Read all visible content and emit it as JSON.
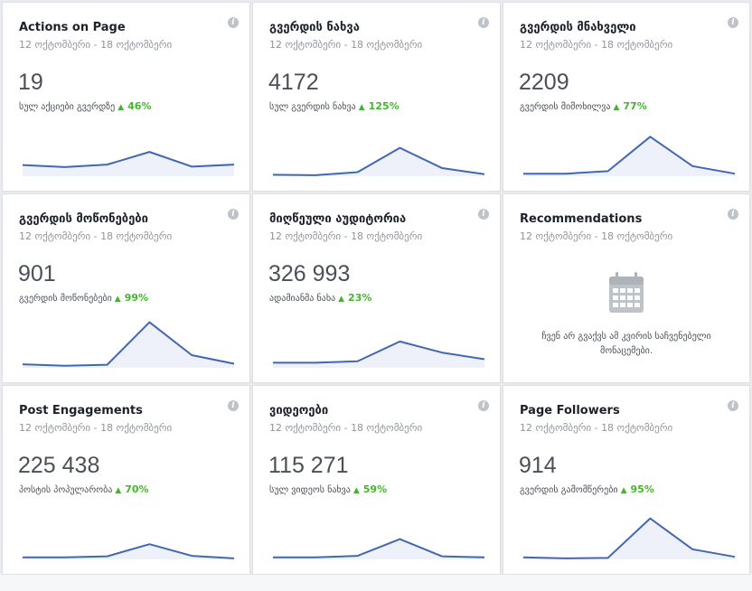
{
  "cards": [
    {
      "title": "Actions on Page",
      "date": "12 ოქტომბერი - 18 ოქტომბერი",
      "value": "19",
      "desc": "სულ აქციები გვერდზე",
      "delta": "46%",
      "series": [
        22,
        18,
        23,
        48,
        19,
        23
      ]
    },
    {
      "title": "გვერდის ნახვა",
      "date": "12 ოქტომბერი - 18 ოქტომბერი",
      "value": "4172",
      "desc": "სულ გვერდის ნახვა",
      "delta": "125%",
      "series": [
        3,
        2,
        8,
        56,
        16,
        4
      ]
    },
    {
      "title": "გვერდის მნახველი",
      "date": "12 ოქტომბერი - 18 ოქტომბერი",
      "value": "2209",
      "desc": "გვერდის მიმოხილვა",
      "delta": "77%",
      "series": [
        5,
        5,
        10,
        78,
        20,
        5
      ]
    },
    {
      "title": "გვერდის მოწონებები",
      "date": "12 ოქტომბერი - 18 ოქტომბერი",
      "value": "901",
      "desc": "გვერდის მოწონებები",
      "delta": "99%",
      "series": [
        7,
        4,
        6,
        90,
        25,
        8
      ]
    },
    {
      "title": "მიღწეული აუდიტორია",
      "date": "12 ოქტომბერი - 18 ოქტომბერი",
      "value": "326 993",
      "desc": "ადამიანმა ნახა",
      "delta": "23%",
      "series": [
        10,
        10,
        13,
        52,
        30,
        17
      ]
    },
    {
      "title": "Recommendations",
      "date": "12 ოქტომბერი - 18 ოქტომბერი",
      "empty": true,
      "empty_icon": "calendar-icon",
      "empty_text": "ჩვენ არ გვაქვს ამ კვირის საჩვენებელი მონაცემები."
    },
    {
      "title": "Post Engagements",
      "date": "12 ოქტომბერი - 18 ოქტომბერი",
      "value": "225 438",
      "desc": "პოსტის პოპულარობა",
      "delta": "70%",
      "series": [
        4,
        4,
        6,
        30,
        7,
        2
      ]
    },
    {
      "title": "ვიდეოები",
      "date": "12 ოქტომბერი - 18 ოქტომბერი",
      "value": "115 271",
      "desc": "სულ ვიდეოს ნახვა",
      "delta": "59%",
      "series": [
        4,
        4,
        7,
        40,
        6,
        4
      ]
    },
    {
      "title": "Page Followers",
      "date": "12 ოქტომბერი - 18 ოქტომბერი",
      "value": "914",
      "desc": "გვერდის გამომწერები",
      "delta": "95%",
      "series": [
        4,
        2,
        3,
        81,
        20,
        5
      ]
    }
  ],
  "info_icon": "info-icon",
  "colors": {
    "line": "#4267b2",
    "fill": "#eef1fa",
    "delta": "#42b72a"
  }
}
